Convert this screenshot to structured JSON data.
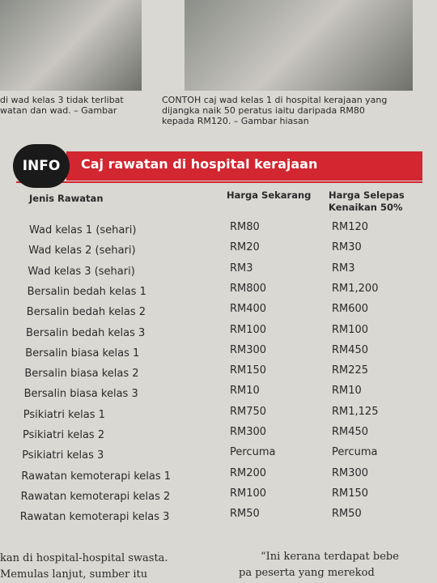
{
  "captions": {
    "left": [
      "di wad kelas 3 tidak terlibat",
      "watan dan wad. – Gambar"
    ],
    "right": [
      "CONTOH caj wad kelas 1 di hospital kerajaan yang",
      "dijangka naik 50 peratus iaitu daripada RM80",
      "kepada RM120. – Gambar hiasan"
    ]
  },
  "info": {
    "badge": "INFO",
    "title": "Caj rawatan di hospital kerajaan"
  },
  "table": {
    "headers": [
      "Jenis Rawatan",
      "Harga Sekarang",
      "Harga Selepas Kenaikan 50%"
    ],
    "rows": [
      [
        "Wad kelas 1 (sehari)",
        "RM80",
        "RM120"
      ],
      [
        "Wad kelas 2 (sehari)",
        "RM20",
        "RM30"
      ],
      [
        "Wad kelas 3 (sehari)",
        "RM3",
        "RM3"
      ],
      [
        "Bersalin bedah kelas 1",
        "RM800",
        "RM1,200"
      ],
      [
        "Bersalin bedah kelas 2",
        "RM400",
        "RM600"
      ],
      [
        "Bersalin bedah kelas 3",
        "RM100",
        "RM100"
      ],
      [
        "Bersalin biasa kelas 1",
        "RM300",
        "RM450"
      ],
      [
        "Bersalin biasa kelas 2",
        "RM150",
        "RM225"
      ],
      [
        "Bersalin biasa kelas 3",
        "RM10",
        "RM10"
      ],
      [
        "Psikiatri kelas 1",
        "RM750",
        "RM1,125"
      ],
      [
        "Psikiatri kelas 2",
        "RM300",
        "RM450"
      ],
      [
        "Psikiatri kelas 3",
        "Percuma",
        "Percuma"
      ],
      [
        "Rawatan kemoterapi kelas 1",
        "RM200",
        "RM300"
      ],
      [
        "Rawatan kemoterapi kelas 2",
        "RM100",
        "RM150"
      ],
      [
        "Rawatan kemoterapi kelas 3",
        "RM50",
        "RM50"
      ]
    ]
  },
  "footer": {
    "left": [
      "kan di hospital-hospital swasta.",
      "Memulas lanjut, sumber itu"
    ],
    "right": [
      "“Ini kerana terdapat bebe",
      "pa peserta yang merekod"
    ]
  }
}
